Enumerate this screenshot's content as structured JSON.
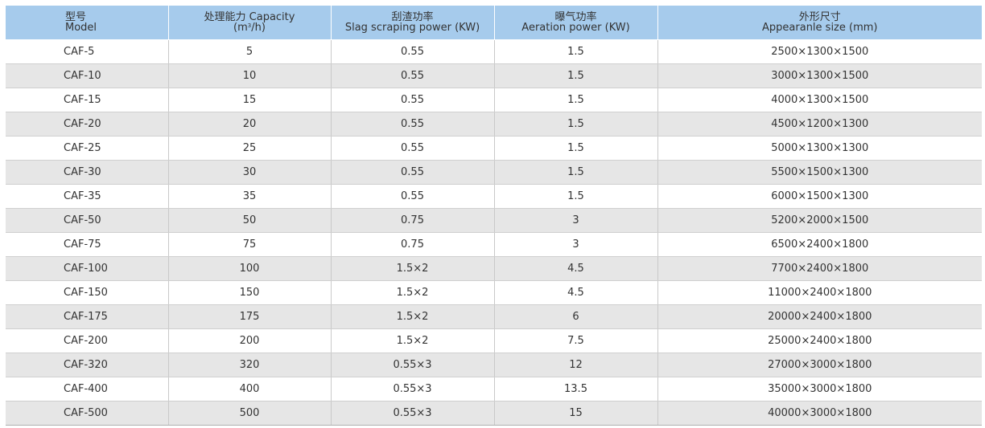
{
  "header": {
    "model_cn": "型号",
    "model_en": "Model",
    "capacity_cn_en": "处理能力 Capacity",
    "capacity_unit_pre": "(m",
    "capacity_unit_sup": "3",
    "capacity_unit_post": "/h)",
    "slag_cn": "刮渣功率",
    "slag_en": "Slag scraping power (KW)",
    "aeration_cn": "曝气功率",
    "aeration_en": "Aeration power (KW)",
    "size_cn": "外形尺寸",
    "size_en": "Appearanle size (mm)"
  },
  "colors": {
    "header_bg": "#a6cbec",
    "row_alt_bg": "#e6e6e6",
    "row_bg": "#ffffff"
  },
  "rows": [
    {
      "model": "CAF-5",
      "capacity": "5",
      "slag": "0.55",
      "aeration": "1.5",
      "size": "2500×1300×1500"
    },
    {
      "model": "CAF-10",
      "capacity": "10",
      "slag": "0.55",
      "aeration": "1.5",
      "size": "3000×1300×1500"
    },
    {
      "model": "CAF-15",
      "capacity": "15",
      "slag": "0.55",
      "aeration": "1.5",
      "size": "4000×1300×1500"
    },
    {
      "model": "CAF-20",
      "capacity": "20",
      "slag": "0.55",
      "aeration": "1.5",
      "size": "4500×1200×1300"
    },
    {
      "model": "CAF-25",
      "capacity": "25",
      "slag": "0.55",
      "aeration": "1.5",
      "size": "5000×1300×1300"
    },
    {
      "model": "CAF-30",
      "capacity": "30",
      "slag": "0.55",
      "aeration": "1.5",
      "size": "5500×1500×1300"
    },
    {
      "model": "CAF-35",
      "capacity": "35",
      "slag": "0.55",
      "aeration": "1.5",
      "size": "6000×1500×1300"
    },
    {
      "model": "CAF-50",
      "capacity": "50",
      "slag": "0.75",
      "aeration": "3",
      "size": "5200×2000×1500"
    },
    {
      "model": "CAF-75",
      "capacity": "75",
      "slag": "0.75",
      "aeration": "3",
      "size": "6500×2400×1800"
    },
    {
      "model": "CAF-100",
      "capacity": "100",
      "slag": "1.5×2",
      "aeration": "4.5",
      "size": "7700×2400×1800"
    },
    {
      "model": "CAF-150",
      "capacity": "150",
      "slag": "1.5×2",
      "aeration": "4.5",
      "size": "11000×2400×1800"
    },
    {
      "model": "CAF-175",
      "capacity": "175",
      "slag": "1.5×2",
      "aeration": "6",
      "size": "20000×2400×1800"
    },
    {
      "model": "CAF-200",
      "capacity": "200",
      "slag": "1.5×2",
      "aeration": "7.5",
      "size": "25000×2400×1800"
    },
    {
      "model": "CAF-320",
      "capacity": "320",
      "slag": "0.55×3",
      "aeration": "12",
      "size": "27000×3000×1800"
    },
    {
      "model": "CAF-400",
      "capacity": "400",
      "slag": "0.55×3",
      "aeration": "13.5",
      "size": "35000×3000×1800"
    },
    {
      "model": "CAF-500",
      "capacity": "500",
      "slag": "0.55×3",
      "aeration": "15",
      "size": "40000×3000×1800"
    }
  ]
}
